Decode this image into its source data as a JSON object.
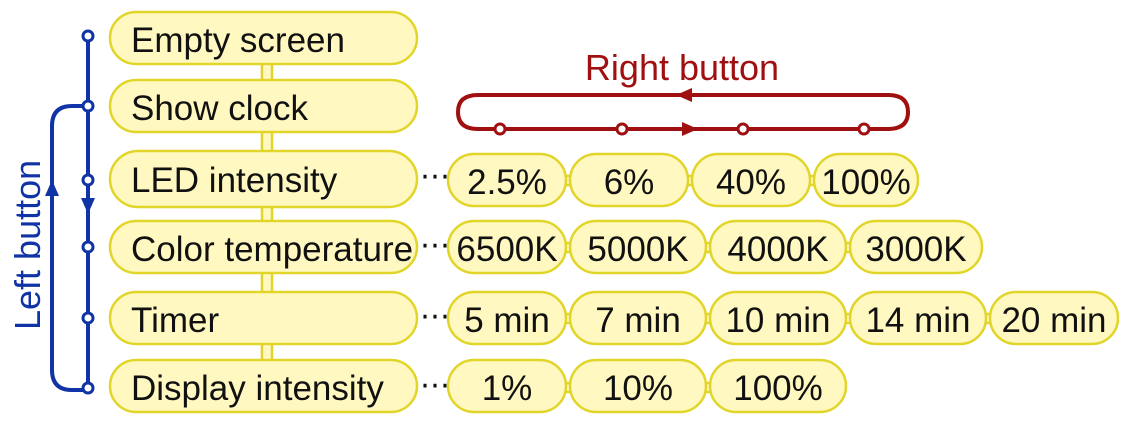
{
  "colors": {
    "pill_fill": "#fff8c0",
    "pill_stroke": "#e2d52a",
    "left_button": "#1034a6",
    "right_button": "#a01010",
    "text": "#111111"
  },
  "labels": {
    "left_button": "Left button",
    "right_button": "Right button",
    "ellipsis": "⋯"
  },
  "menu": [
    {
      "label": "Empty screen",
      "options": []
    },
    {
      "label": "Show clock",
      "options": []
    },
    {
      "label": "LED intensity",
      "options": [
        "2.5%",
        "6%",
        "40%",
        "100%"
      ]
    },
    {
      "label": "Color temperature",
      "options": [
        "6500K",
        "5000K",
        "4000K",
        "3000K"
      ]
    },
    {
      "label": "Timer",
      "options": [
        "5 min",
        "7 min",
        "10 min",
        "14 min",
        "20 min"
      ]
    },
    {
      "label": "Display intensity",
      "options": [
        "1%",
        "10%",
        "100%"
      ]
    }
  ]
}
